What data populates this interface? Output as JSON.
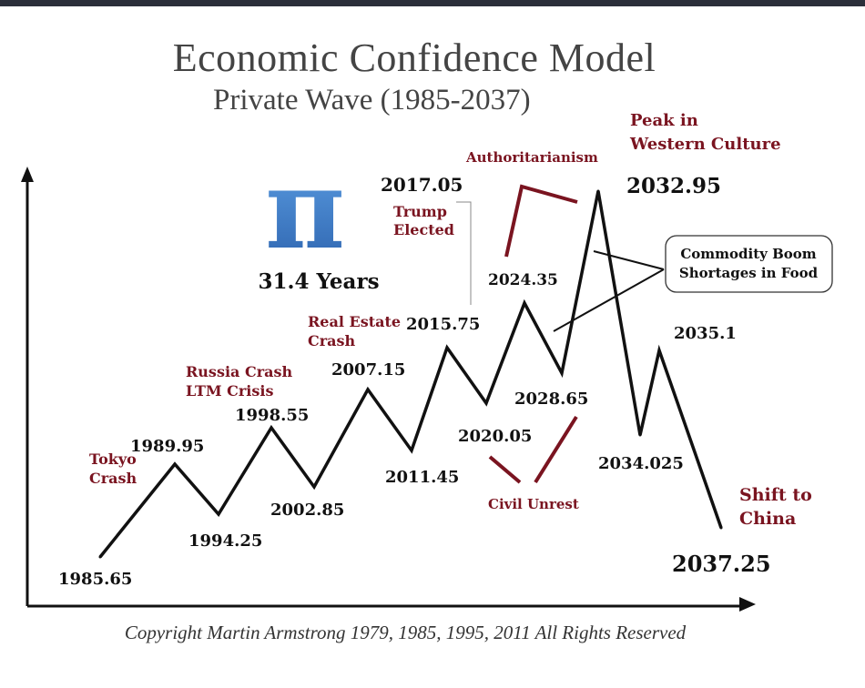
{
  "title": "Economic Confidence Model",
  "subtitle": "Private Wave (1985-2037)",
  "copyright": "Copyright Martin Armstrong 1979, 1985, 1995, 2011 All Rights Reserved",
  "pi_symbol": "π",
  "pi_caption": "31.4 Years",
  "colors": {
    "line": "#111111",
    "annotation": "#7a1420",
    "pi": "#3a78c2",
    "axis": "#111111"
  },
  "chart_data": {
    "type": "line",
    "series": [
      {
        "points": [
          {
            "x": 1985.65,
            "label": "1985.65"
          },
          {
            "x": 1989.95,
            "label": "1989.95"
          },
          {
            "x": 1994.25,
            "label": "1994.25"
          },
          {
            "x": 1998.55,
            "label": "1998.55"
          },
          {
            "x": 2002.85,
            "label": "2002.85"
          },
          {
            "x": 2007.15,
            "label": "2007.15"
          },
          {
            "x": 2011.45,
            "label": "2011.45"
          },
          {
            "x": 2015.75,
            "label": "2015.75"
          },
          {
            "x": 2020.05,
            "label": "2020.05"
          },
          {
            "x": 2024.35,
            "label": "2024.35"
          },
          {
            "x": 2028.65,
            "label": "2028.65"
          },
          {
            "x": 2032.95,
            "label": "2032.95"
          },
          {
            "x": 2034.025,
            "label": "2034.025"
          },
          {
            "x": 2035.1,
            "label": "2035.1"
          },
          {
            "x": 2037.25,
            "label": "2037.25"
          }
        ]
      }
    ],
    "extra_labels": {
      "x2017": "2017.05"
    },
    "annotations": [
      {
        "text": [
          "Tokyo",
          "Crash"
        ]
      },
      {
        "text": [
          "Russia Crash",
          "LTM Crisis"
        ]
      },
      {
        "text": [
          "Real Estate",
          "Crash"
        ]
      },
      {
        "text": [
          "Trump",
          "Elected"
        ]
      },
      {
        "text": [
          "Authoritarianism"
        ]
      },
      {
        "text": [
          "Peak in",
          "Western Culture"
        ]
      },
      {
        "text": [
          "Civil Unrest"
        ]
      },
      {
        "text": [
          "Shift to",
          "China"
        ]
      }
    ],
    "callout": [
      "Commodity Boom",
      "Shortages in Food"
    ]
  }
}
